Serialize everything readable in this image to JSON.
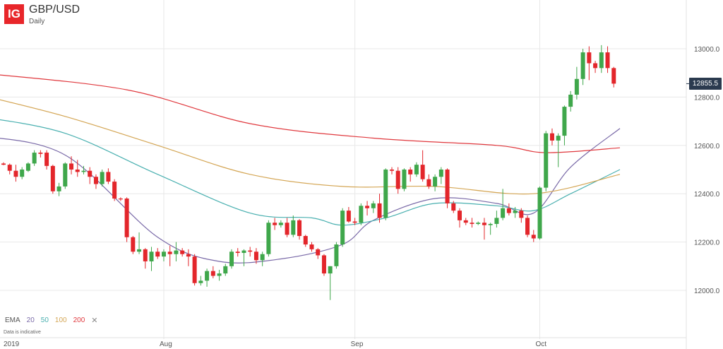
{
  "header": {
    "logo_text": "IG",
    "title": "GBP/USD",
    "subtitle": "Daily"
  },
  "legend": {
    "label": "EMA",
    "periods": [
      {
        "label": "20",
        "color": "#7a6aa8"
      },
      {
        "label": "50",
        "color": "#4ab0b0"
      },
      {
        "label": "100",
        "color": "#d4a655"
      },
      {
        "label": "200",
        "color": "#e0393e"
      }
    ],
    "close_icon": "close-icon",
    "close_label": "✕"
  },
  "disclaimer": "Data is indicative",
  "price_badge": "12855.5",
  "colors": {
    "up": "#3fa74b",
    "down": "#e3262b",
    "grid": "#e8e8e8",
    "axis_text": "#555555"
  },
  "chart_data": {
    "type": "candlestick",
    "title": "GBP/USD",
    "subtitle": "Daily",
    "ylim": [
      11900,
      13100
    ],
    "y_ticks": [
      12000,
      12200,
      12400,
      12600,
      12800,
      13000
    ],
    "y_tick_labels": [
      "12000.0",
      "12200.0",
      "12400.0",
      "12600.0",
      "12800.0",
      "13000.0"
    ],
    "x_tick_labels": [
      {
        "label": "2019",
        "index": 0
      },
      {
        "label": "Aug",
        "index": 26
      },
      {
        "label": "Sep",
        "index": 57
      },
      {
        "label": "Oct",
        "index": 87
      }
    ],
    "last_price": 12855.5,
    "candles": [
      [
        12525,
        12530,
        12518,
        12520
      ],
      [
        12520,
        12525,
        12480,
        12495
      ],
      [
        12495,
        12520,
        12450,
        12470
      ],
      [
        12470,
        12510,
        12460,
        12500
      ],
      [
        12495,
        12530,
        12490,
        12525
      ],
      [
        12525,
        12580,
        12515,
        12570
      ],
      [
        12570,
        12580,
        12550,
        12565
      ],
      [
        12570,
        12580,
        12500,
        12515
      ],
      [
        12515,
        12520,
        12400,
        12410
      ],
      [
        12410,
        12445,
        12390,
        12430
      ],
      [
        12430,
        12530,
        12420,
        12525
      ],
      [
        12525,
        12555,
        12480,
        12500
      ],
      [
        12500,
        12540,
        12470,
        12490
      ],
      [
        12490,
        12515,
        12480,
        12495
      ],
      [
        12495,
        12510,
        12440,
        12470
      ],
      [
        12470,
        12480,
        12420,
        12440
      ],
      [
        12440,
        12500,
        12430,
        12490
      ],
      [
        12490,
        12505,
        12440,
        12450
      ],
      [
        12450,
        12460,
        12370,
        12380
      ],
      [
        12380,
        12385,
        12370,
        12378
      ],
      [
        12380,
        12385,
        12200,
        12220
      ],
      [
        12220,
        12225,
        12150,
        12160
      ],
      [
        12160,
        12240,
        12150,
        12170
      ],
      [
        12170,
        12175,
        12090,
        12120
      ],
      [
        12120,
        12180,
        12080,
        12160
      ],
      [
        12160,
        12175,
        12130,
        12140
      ],
      [
        12140,
        12170,
        12120,
        12160
      ],
      [
        12160,
        12185,
        12100,
        12150
      ],
      [
        12150,
        12200,
        12120,
        12165
      ],
      [
        12165,
        12175,
        12140,
        12150
      ],
      [
        12150,
        12170,
        12100,
        12140
      ],
      [
        12140,
        12150,
        12020,
        12030
      ],
      [
        12030,
        12060,
        12020,
        12040
      ],
      [
        12040,
        12090,
        12015,
        12080
      ],
      [
        12080,
        12100,
        12050,
        12060
      ],
      [
        12060,
        12085,
        12040,
        12070
      ],
      [
        12070,
        12110,
        12060,
        12100
      ],
      [
        12100,
        12170,
        12090,
        12160
      ],
      [
        12160,
        12175,
        12140,
        12155
      ],
      [
        12155,
        12170,
        12100,
        12165
      ],
      [
        12165,
        12180,
        12140,
        12160
      ],
      [
        12160,
        12175,
        12110,
        12125
      ],
      [
        12125,
        12160,
        12100,
        12150
      ],
      [
        12150,
        12290,
        12140,
        12280
      ],
      [
        12280,
        12300,
        12250,
        12270
      ],
      [
        12270,
        12290,
        12260,
        12280
      ],
      [
        12280,
        12300,
        12220,
        12230
      ],
      [
        12230,
        12310,
        12220,
        12290
      ],
      [
        12290,
        12295,
        12210,
        12225
      ],
      [
        12225,
        12230,
        12180,
        12190
      ],
      [
        12190,
        12200,
        12160,
        12170
      ],
      [
        12170,
        12175,
        12130,
        12145
      ],
      [
        12145,
        12150,
        12060,
        12070
      ],
      [
        12070,
        12100,
        11960,
        12100
      ],
      [
        12100,
        12200,
        12090,
        12190
      ],
      [
        12190,
        12340,
        12180,
        12330
      ],
      [
        12330,
        12345,
        12280,
        12285
      ],
      [
        12285,
        12300,
        12270,
        12280
      ],
      [
        12280,
        12360,
        12270,
        12350
      ],
      [
        12350,
        12370,
        12310,
        12340
      ],
      [
        12340,
        12370,
        12320,
        12360
      ],
      [
        12360,
        12400,
        12280,
        12300
      ],
      [
        12300,
        12505,
        12290,
        12500
      ],
      [
        12500,
        12510,
        12480,
        12495
      ],
      [
        12495,
        12510,
        12400,
        12420
      ],
      [
        12420,
        12505,
        12410,
        12500
      ],
      [
        12500,
        12510,
        12450,
        12480
      ],
      [
        12480,
        12530,
        12470,
        12520
      ],
      [
        12520,
        12580,
        12450,
        12460
      ],
      [
        12460,
        12480,
        12420,
        12430
      ],
      [
        12430,
        12480,
        12410,
        12470
      ],
      [
        12470,
        12510,
        12440,
        12500
      ],
      [
        12500,
        12505,
        12340,
        12360
      ],
      [
        12360,
        12370,
        12320,
        12330
      ],
      [
        12330,
        12340,
        12260,
        12290
      ],
      [
        12290,
        12300,
        12270,
        12280
      ],
      [
        12280,
        12300,
        12260,
        12275
      ],
      [
        12275,
        12285,
        12270,
        12280
      ],
      [
        12280,
        12300,
        12210,
        12270
      ],
      [
        12270,
        12280,
        12230,
        12275
      ],
      [
        12275,
        12330,
        12260,
        12300
      ],
      [
        12300,
        12420,
        12290,
        12340
      ],
      [
        12340,
        12360,
        12310,
        12320
      ],
      [
        12320,
        12345,
        12300,
        12330
      ],
      [
        12330,
        12340,
        12280,
        12300
      ],
      [
        12300,
        12310,
        12220,
        12230
      ],
      [
        12230,
        12250,
        12200,
        12215
      ],
      [
        12215,
        12430,
        12210,
        12425
      ],
      [
        12425,
        12660,
        12410,
        12650
      ],
      [
        12650,
        12670,
        12600,
        12620
      ],
      [
        12620,
        12650,
        12510,
        12640
      ],
      [
        12640,
        12765,
        12600,
        12760
      ],
      [
        12760,
        12825,
        12740,
        12810
      ],
      [
        12810,
        12925,
        12790,
        12875
      ],
      [
        12875,
        13000,
        12850,
        12985
      ],
      [
        12985,
        13010,
        12870,
        12940
      ],
      [
        12940,
        12950,
        12900,
        12920
      ],
      [
        12920,
        13015,
        12900,
        12985
      ],
      [
        12985,
        13010,
        12900,
        12920
      ],
      [
        12920,
        12925,
        12840,
        12855.5
      ]
    ],
    "ema": [
      {
        "period": 20,
        "color": "#7a6aa8",
        "points": [
          [
            -4,
            12640
          ],
          [
            10,
            12560
          ],
          [
            25,
            12220
          ],
          [
            35,
            12120
          ],
          [
            45,
            12130
          ],
          [
            55,
            12190
          ],
          [
            60,
            12290
          ],
          [
            70,
            12380
          ],
          [
            80,
            12360
          ],
          [
            86,
            12320
          ],
          [
            92,
            12510
          ],
          [
            100,
            12670
          ]
        ]
      },
      {
        "period": 50,
        "color": "#4ab0b0",
        "points": [
          [
            -4,
            12720
          ],
          [
            10,
            12650
          ],
          [
            25,
            12480
          ],
          [
            40,
            12320
          ],
          [
            50,
            12300
          ],
          [
            55,
            12270
          ],
          [
            62,
            12300
          ],
          [
            70,
            12360
          ],
          [
            80,
            12350
          ],
          [
            86,
            12330
          ],
          [
            92,
            12400
          ],
          [
            100,
            12500
          ]
        ]
      },
      {
        "period": 100,
        "color": "#d4a655",
        "points": [
          [
            -4,
            12810
          ],
          [
            10,
            12720
          ],
          [
            25,
            12600
          ],
          [
            40,
            12480
          ],
          [
            55,
            12430
          ],
          [
            70,
            12430
          ],
          [
            86,
            12400
          ],
          [
            100,
            12480
          ]
        ]
      },
      {
        "period": 200,
        "color": "#e0393e",
        "points": [
          [
            -4,
            12900
          ],
          [
            20,
            12830
          ],
          [
            40,
            12690
          ],
          [
            60,
            12630
          ],
          [
            80,
            12600
          ],
          [
            88,
            12570
          ],
          [
            100,
            12590
          ]
        ]
      }
    ]
  }
}
